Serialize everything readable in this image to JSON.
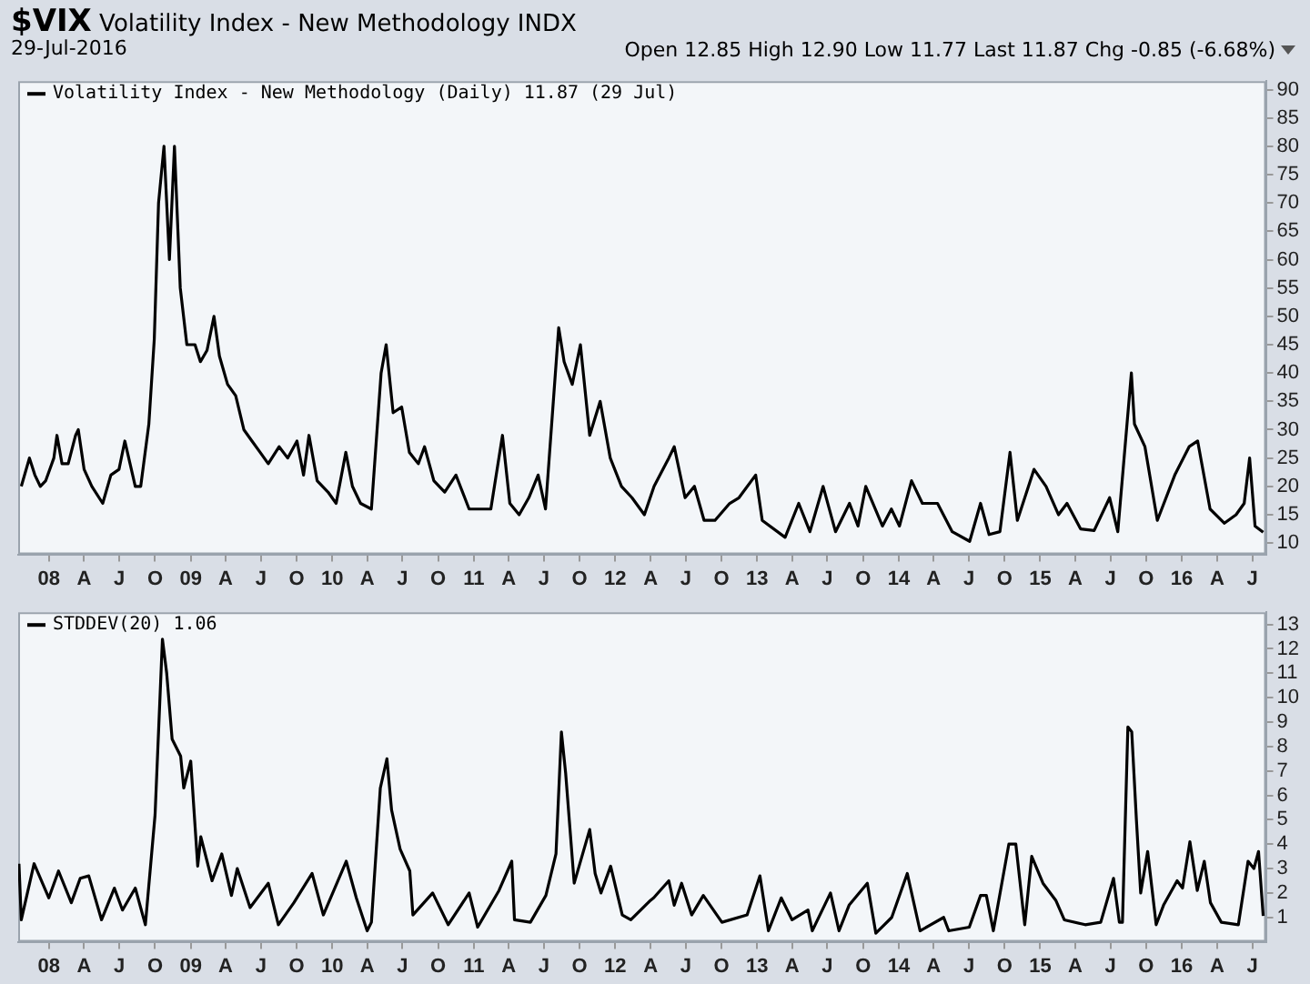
{
  "chart_data": [
    {
      "type": "line",
      "title": "$VIX Volatility Index - New Methodology INDX",
      "subtitle": "29-Jul-2016",
      "annotations": [
        "Open 12.85 High 12.90 Low 11.77 Last 11.87 Chg -0.85 (-6.68%)"
      ],
      "xlim": [
        "2007-10-14",
        "2016-08-05"
      ],
      "ylim": [
        8,
        91.5
      ],
      "xticks": [
        {
          "value": "2008-01-01",
          "label": "08"
        },
        {
          "value": "2008-04-01",
          "label": "A"
        },
        {
          "value": "2008-07-01",
          "label": "J"
        },
        {
          "value": "2008-10-01",
          "label": "O"
        },
        {
          "value": "2009-01-01",
          "label": "09"
        },
        {
          "value": "2009-04-01",
          "label": "A"
        },
        {
          "value": "2009-07-01",
          "label": "J"
        },
        {
          "value": "2009-10-01",
          "label": "O"
        },
        {
          "value": "2010-01-01",
          "label": "10"
        },
        {
          "value": "2010-04-01",
          "label": "A"
        },
        {
          "value": "2010-07-01",
          "label": "J"
        },
        {
          "value": "2010-10-01",
          "label": "O"
        },
        {
          "value": "2011-01-01",
          "label": "11"
        },
        {
          "value": "2011-04-01",
          "label": "A"
        },
        {
          "value": "2011-07-01",
          "label": "J"
        },
        {
          "value": "2011-10-01",
          "label": "O"
        },
        {
          "value": "2012-01-01",
          "label": "12"
        },
        {
          "value": "2012-04-01",
          "label": "A"
        },
        {
          "value": "2012-07-01",
          "label": "J"
        },
        {
          "value": "2012-10-01",
          "label": "O"
        },
        {
          "value": "2013-01-01",
          "label": "13"
        },
        {
          "value": "2013-04-01",
          "label": "A"
        },
        {
          "value": "2013-07-01",
          "label": "J"
        },
        {
          "value": "2013-10-01",
          "label": "O"
        },
        {
          "value": "2014-01-01",
          "label": "14"
        },
        {
          "value": "2014-04-01",
          "label": "A"
        },
        {
          "value": "2014-07-01",
          "label": "J"
        },
        {
          "value": "2014-10-01",
          "label": "O"
        },
        {
          "value": "2015-01-01",
          "label": "15"
        },
        {
          "value": "2015-04-01",
          "label": "A"
        },
        {
          "value": "2015-07-01",
          "label": "J"
        },
        {
          "value": "2015-10-01",
          "label": "O"
        },
        {
          "value": "2016-01-01",
          "label": "16"
        },
        {
          "value": "2016-04-01",
          "label": "A"
        },
        {
          "value": "2016-07-01",
          "label": "J"
        }
      ],
      "yticks": [
        10,
        15,
        20,
        25,
        30,
        35,
        40,
        45,
        50,
        55,
        60,
        65,
        70,
        75,
        80,
        85,
        90
      ],
      "legend": "top left",
      "marker": "none",
      "line_style": "solid",
      "grid": false,
      "series": [
        {
          "name": "Volatility Index - New Methodology (Daily) 11.87 (29 Jul)",
          "color": "#000000",
          "x": [
            "2007-10-22",
            "2007-11-12",
            "2007-11-26",
            "2007-12-10",
            "2007-12-24",
            "2008-01-14",
            "2008-01-22",
            "2008-02-04",
            "2008-02-20",
            "2008-03-10",
            "2008-03-17",
            "2008-04-01",
            "2008-04-21",
            "2008-05-19",
            "2008-06-09",
            "2008-06-30",
            "2008-07-15",
            "2008-08-11",
            "2008-08-25",
            "2008-09-15",
            "2008-09-29",
            "2008-10-10",
            "2008-10-24",
            "2008-11-07",
            "2008-11-20",
            "2008-12-05",
            "2008-12-22",
            "2009-01-12",
            "2009-01-26",
            "2009-02-12",
            "2009-03-02",
            "2009-03-16",
            "2009-04-06",
            "2009-04-27",
            "2009-05-18",
            "2009-06-08",
            "2009-06-29",
            "2009-07-20",
            "2009-08-17",
            "2009-09-08",
            "2009-10-02",
            "2009-10-19",
            "2009-11-02",
            "2009-11-23",
            "2009-12-21",
            "2010-01-11",
            "2010-02-05",
            "2010-02-22",
            "2010-03-15",
            "2010-04-12",
            "2010-05-07",
            "2010-05-20",
            "2010-06-07",
            "2010-06-29",
            "2010-07-19",
            "2010-08-11",
            "2010-08-27",
            "2010-09-20",
            "2010-10-18",
            "2010-11-16",
            "2010-12-20",
            "2011-01-18",
            "2011-02-14",
            "2011-03-16",
            "2011-04-04",
            "2011-04-28",
            "2011-05-23",
            "2011-06-16",
            "2011-07-05",
            "2011-08-08",
            "2011-08-22",
            "2011-09-12",
            "2011-10-03",
            "2011-10-27",
            "2011-11-23",
            "2011-12-19",
            "2012-01-17",
            "2012-02-13",
            "2012-03-16",
            "2012-04-10",
            "2012-05-18",
            "2012-06-01",
            "2012-06-29",
            "2012-07-23",
            "2012-08-17",
            "2012-09-14",
            "2012-10-22",
            "2012-11-15",
            "2012-12-28",
            "2013-01-14",
            "2013-03-14",
            "2013-04-18",
            "2013-05-17",
            "2013-06-20",
            "2013-07-22",
            "2013-08-27",
            "2013-09-18",
            "2013-10-08",
            "2013-11-20",
            "2013-12-13",
            "2014-01-03",
            "2014-02-03",
            "2014-03-03",
            "2014-04-11",
            "2014-05-19",
            "2014-07-03",
            "2014-07-31",
            "2014-08-22",
            "2014-09-19",
            "2014-10-15",
            "2014-11-03",
            "2014-12-16",
            "2015-01-16",
            "2015-02-17",
            "2015-03-11",
            "2015-04-15",
            "2015-05-20",
            "2015-06-29",
            "2015-07-20",
            "2015-08-24",
            "2015-09-01",
            "2015-09-28",
            "2015-10-30",
            "2015-12-14",
            "2016-01-20",
            "2016-02-11",
            "2016-03-14",
            "2016-04-20",
            "2016-05-20",
            "2016-06-10",
            "2016-06-24",
            "2016-07-08",
            "2016-07-29"
          ],
          "values": [
            20,
            25,
            22,
            20,
            21,
            25,
            29,
            24,
            24,
            29,
            30,
            23,
            20,
            17,
            22,
            23,
            28,
            20,
            20,
            31,
            46,
            70,
            80,
            60,
            80,
            55,
            45,
            45,
            42,
            44,
            50,
            43,
            38,
            36,
            30,
            28,
            26,
            24,
            27,
            25,
            28,
            22,
            29,
            21,
            19,
            17,
            26,
            20,
            17,
            16,
            40,
            45,
            33,
            34,
            26,
            24,
            27,
            21,
            19,
            22,
            16,
            16,
            16,
            29,
            17,
            15,
            18,
            22,
            16,
            48,
            42,
            38,
            45,
            29,
            35,
            25,
            20,
            18,
            15,
            20,
            25,
            27,
            18,
            20,
            14,
            14,
            17,
            18,
            22,
            14,
            11,
            17,
            12,
            20,
            12,
            17,
            13,
            20,
            13,
            16,
            13,
            21,
            17,
            17,
            12,
            10.3,
            17,
            11.5,
            12,
            26,
            14,
            23,
            20,
            15,
            17,
            12.5,
            12.2,
            18,
            12,
            40,
            31,
            27,
            14,
            22,
            27,
            28,
            16,
            13.5,
            15,
            17,
            25,
            13,
            11.9
          ]
        }
      ]
    },
    {
      "type": "line",
      "xlim": [
        "2007-10-14",
        "2016-08-05"
      ],
      "ylim": [
        0,
        13.5
      ],
      "xticks": [
        {
          "value": "2008-01-01",
          "label": "08"
        },
        {
          "value": "2008-04-01",
          "label": "A"
        },
        {
          "value": "2008-07-01",
          "label": "J"
        },
        {
          "value": "2008-10-01",
          "label": "O"
        },
        {
          "value": "2009-01-01",
          "label": "09"
        },
        {
          "value": "2009-04-01",
          "label": "A"
        },
        {
          "value": "2009-07-01",
          "label": "J"
        },
        {
          "value": "2009-10-01",
          "label": "O"
        },
        {
          "value": "2010-01-01",
          "label": "10"
        },
        {
          "value": "2010-04-01",
          "label": "A"
        },
        {
          "value": "2010-07-01",
          "label": "J"
        },
        {
          "value": "2010-10-01",
          "label": "O"
        },
        {
          "value": "2011-01-01",
          "label": "11"
        },
        {
          "value": "2011-04-01",
          "label": "A"
        },
        {
          "value": "2011-07-01",
          "label": "J"
        },
        {
          "value": "2011-10-01",
          "label": "O"
        },
        {
          "value": "2012-01-01",
          "label": "12"
        },
        {
          "value": "2012-04-01",
          "label": "A"
        },
        {
          "value": "2012-07-01",
          "label": "J"
        },
        {
          "value": "2012-10-01",
          "label": "O"
        },
        {
          "value": "2013-01-01",
          "label": "13"
        },
        {
          "value": "2013-04-01",
          "label": "A"
        },
        {
          "value": "2013-07-01",
          "label": "J"
        },
        {
          "value": "2013-10-01",
          "label": "O"
        },
        {
          "value": "2014-01-01",
          "label": "14"
        },
        {
          "value": "2014-04-01",
          "label": "A"
        },
        {
          "value": "2014-07-01",
          "label": "J"
        },
        {
          "value": "2014-10-01",
          "label": "O"
        },
        {
          "value": "2015-01-01",
          "label": "15"
        },
        {
          "value": "2015-04-01",
          "label": "A"
        },
        {
          "value": "2015-07-01",
          "label": "J"
        },
        {
          "value": "2015-10-01",
          "label": "O"
        },
        {
          "value": "2016-01-01",
          "label": "16"
        },
        {
          "value": "2016-04-01",
          "label": "A"
        },
        {
          "value": "2016-07-01",
          "label": "J"
        }
      ],
      "yticks": [
        1,
        2,
        3,
        4,
        5,
        6,
        7,
        8,
        9,
        10,
        11,
        12,
        13
      ],
      "legend": "top left",
      "marker": "none",
      "line_style": "solid",
      "grid": false,
      "series": [
        {
          "name": "STDDEV(20) 1.06",
          "color": "#000000",
          "x": [
            "2007-10-16",
            "2007-10-22",
            "2007-11-24",
            "2008-01-01",
            "2008-01-26",
            "2008-02-28",
            "2008-03-22",
            "2008-04-13",
            "2008-05-16",
            "2008-06-18",
            "2008-07-09",
            "2008-08-11",
            "2008-09-06",
            "2008-10-01",
            "2008-10-20",
            "2008-10-31",
            "2008-11-14",
            "2008-12-06",
            "2008-12-14",
            "2009-01-01",
            "2009-01-19",
            "2009-01-27",
            "2009-02-25",
            "2009-03-22",
            "2009-04-16",
            "2009-05-01",
            "2009-06-03",
            "2009-07-20",
            "2009-08-15",
            "2009-09-24",
            "2009-11-10",
            "2009-12-09",
            "2010-02-06",
            "2010-03-04",
            "2010-04-01",
            "2010-04-12",
            "2010-05-05",
            "2010-05-22",
            "2010-06-03",
            "2010-06-25",
            "2010-07-20",
            "2010-07-28",
            "2010-09-17",
            "2010-10-27",
            "2010-12-20",
            "2011-01-11",
            "2011-03-07",
            "2011-04-09",
            "2011-04-16",
            "2011-05-27",
            "2011-07-06",
            "2011-08-01",
            "2011-08-15",
            "2011-08-26",
            "2011-09-17",
            "2011-10-27",
            "2011-11-10",
            "2011-11-25",
            "2011-12-20",
            "2012-01-19",
            "2012-02-10",
            "2012-04-01",
            "2012-04-09",
            "2012-05-18",
            "2012-06-01",
            "2012-06-20",
            "2012-07-16",
            "2012-08-15",
            "2012-10-02",
            "2012-12-06",
            "2013-01-08",
            "2013-01-30",
            "2013-03-04",
            "2013-04-01",
            "2013-05-12",
            "2013-05-23",
            "2013-07-09",
            "2013-07-31",
            "2013-08-26",
            "2013-10-12",
            "2013-11-03",
            "2013-12-14",
            "2014-01-23",
            "2014-02-25",
            "2014-04-27",
            "2014-05-10",
            "2014-07-02",
            "2014-07-31",
            "2014-08-15",
            "2014-09-02",
            "2014-10-12",
            "2014-10-30",
            "2014-11-22",
            "2014-12-10",
            "2015-01-08",
            "2015-02-10",
            "2015-03-04",
            "2015-04-27",
            "2015-06-06",
            "2015-07-09",
            "2015-07-24",
            "2015-08-01",
            "2015-08-15",
            "2015-08-25",
            "2015-09-06",
            "2015-09-17",
            "2015-10-05",
            "2015-10-27",
            "2015-11-15",
            "2015-12-20",
            "2016-01-03",
            "2016-01-22",
            "2016-02-10",
            "2016-02-28",
            "2016-03-15",
            "2016-04-12",
            "2016-05-26",
            "2016-06-20",
            "2016-07-05",
            "2016-07-17",
            "2016-07-29"
          ],
          "values": [
            3.2,
            0.9,
            3.2,
            1.8,
            2.9,
            1.6,
            2.6,
            2.7,
            0.9,
            2.2,
            1.3,
            2.2,
            0.7,
            5.2,
            12.4,
            11.0,
            8.3,
            7.6,
            6.3,
            7.4,
            3.1,
            4.3,
            2.5,
            3.6,
            1.9,
            3.0,
            1.4,
            2.4,
            0.7,
            1.6,
            2.8,
            1.1,
            3.3,
            1.8,
            0.45,
            0.8,
            6.3,
            7.5,
            5.4,
            3.8,
            2.9,
            1.1,
            2.0,
            0.7,
            2.0,
            0.6,
            2.1,
            3.3,
            0.9,
            0.8,
            1.9,
            3.6,
            8.6,
            6.9,
            2.4,
            4.6,
            2.8,
            2.0,
            3.1,
            1.1,
            0.9,
            1.7,
            1.8,
            2.5,
            1.5,
            2.4,
            1.1,
            1.9,
            0.8,
            1.1,
            2.7,
            0.45,
            1.8,
            0.9,
            1.3,
            0.45,
            2.0,
            0.45,
            1.5,
            2.4,
            0.35,
            1.0,
            2.8,
            0.45,
            1.0,
            0.45,
            0.6,
            1.9,
            1.9,
            0.45,
            4.0,
            4.0,
            0.7,
            3.5,
            2.4,
            1.7,
            0.9,
            0.7,
            0.8,
            2.6,
            0.8,
            0.8,
            8.8,
            8.6,
            5.0,
            2.0,
            3.7,
            0.7,
            1.5,
            2.5,
            2.2,
            4.1,
            2.1,
            3.3,
            1.6,
            0.8,
            0.7,
            3.3,
            3.0,
            3.7,
            1.06
          ]
        }
      ]
    }
  ]
}
